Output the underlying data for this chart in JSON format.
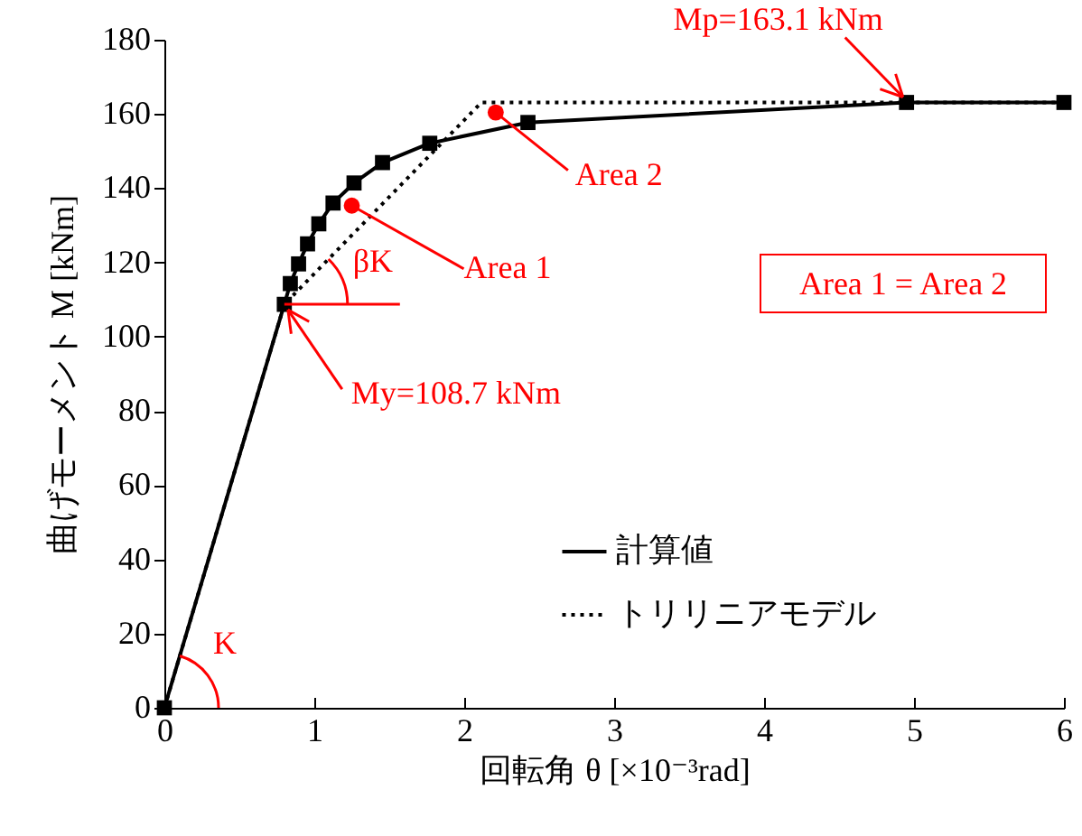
{
  "chart_data": {
    "type": "line",
    "xlabel": "回転角 θ [×10⁻³rad]",
    "ylabel": "曲げモーメント M [kNm]",
    "xlim": [
      0,
      6
    ],
    "xticks": [
      0,
      1,
      2,
      3,
      4,
      5,
      6
    ],
    "ylim": [
      0,
      180
    ],
    "yticks": [
      0,
      20,
      40,
      60,
      80,
      100,
      120,
      140,
      160,
      180
    ],
    "grid": false,
    "legend": "bottom right",
    "series": [
      {
        "name": "計算値",
        "color": "#000000",
        "marker": "square",
        "line_style": "solid",
        "x": [
          0,
          0.8,
          0.84,
          0.895,
          0.955,
          1.03,
          1.125,
          1.265,
          1.455,
          1.77,
          2.425,
          4.95,
          6.0
        ],
        "values": [
          0,
          108.7,
          114.3,
          119.6,
          125,
          130.4,
          136,
          141.4,
          146.9,
          152.1,
          157.7,
          163.1,
          163.1
        ]
      },
      {
        "name": "トリリニアモデル",
        "color": "#000000",
        "marker": "none",
        "line_style": "dotted",
        "x": [
          0,
          0.8,
          2.115,
          6.0
        ],
        "values": [
          0,
          108.7,
          163.1,
          163.1
        ]
      },
      {
        "type": "scatter",
        "color": "#ff0000",
        "marker": "circle",
        "x": [
          1.25,
          2.21
        ],
        "values": [
          135.3,
          160.4
        ]
      }
    ],
    "annotations": [
      {
        "text": "Mp=163.1 kNm",
        "x": 4.95,
        "y": 163.1
      },
      {
        "text": "My=108.7 kNm",
        "x": 0.8,
        "y": 108.7
      },
      {
        "text": "Area 1",
        "x": 1.25,
        "y": 135.3
      },
      {
        "text": "Area 2",
        "x": 2.21,
        "y": 160.4
      },
      {
        "text": "βK",
        "x": 0.8,
        "y": 108.7
      },
      {
        "text": "K",
        "x": 0,
        "y": 0
      },
      "Area 1 = Area 2"
    ]
  }
}
